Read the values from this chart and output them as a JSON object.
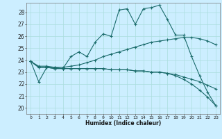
{
  "xlabel": "Humidex (Indice chaleur)",
  "background_color": "#cceeff",
  "grid_color": "#aadddd",
  "line_color": "#1a6b6b",
  "xlim": [
    -0.5,
    23.5
  ],
  "ylim": [
    19.5,
    28.8
  ],
  "yticks": [
    20,
    21,
    22,
    23,
    24,
    25,
    26,
    27,
    28
  ],
  "xticks": [
    0,
    1,
    2,
    3,
    4,
    5,
    6,
    7,
    8,
    9,
    10,
    11,
    12,
    13,
    14,
    15,
    16,
    17,
    18,
    19,
    20,
    21,
    22,
    23
  ],
  "series": [
    [
      23.9,
      22.2,
      23.4,
      23.4,
      23.3,
      24.3,
      24.7,
      24.3,
      25.5,
      26.2,
      26.0,
      28.2,
      28.3,
      27.0,
      28.3,
      28.4,
      28.6,
      27.4,
      26.1,
      26.1,
      24.3,
      22.7,
      21.3,
      20.2
    ],
    [
      23.9,
      23.5,
      23.5,
      23.4,
      23.4,
      23.5,
      23.6,
      23.8,
      24.0,
      24.3,
      24.5,
      24.7,
      24.9,
      25.1,
      25.3,
      25.5,
      25.6,
      25.7,
      25.8,
      25.9,
      25.9,
      25.8,
      25.6,
      25.3
    ],
    [
      23.9,
      23.4,
      23.4,
      23.3,
      23.3,
      23.3,
      23.3,
      23.3,
      23.3,
      23.3,
      23.2,
      23.2,
      23.2,
      23.1,
      23.1,
      23.0,
      23.0,
      22.9,
      22.8,
      22.6,
      22.4,
      22.2,
      21.9,
      21.6
    ],
    [
      23.9,
      23.4,
      23.4,
      23.3,
      23.3,
      23.3,
      23.3,
      23.3,
      23.3,
      23.3,
      23.2,
      23.2,
      23.2,
      23.1,
      23.1,
      23.0,
      23.0,
      22.9,
      22.7,
      22.4,
      22.0,
      21.5,
      20.9,
      20.2
    ]
  ]
}
